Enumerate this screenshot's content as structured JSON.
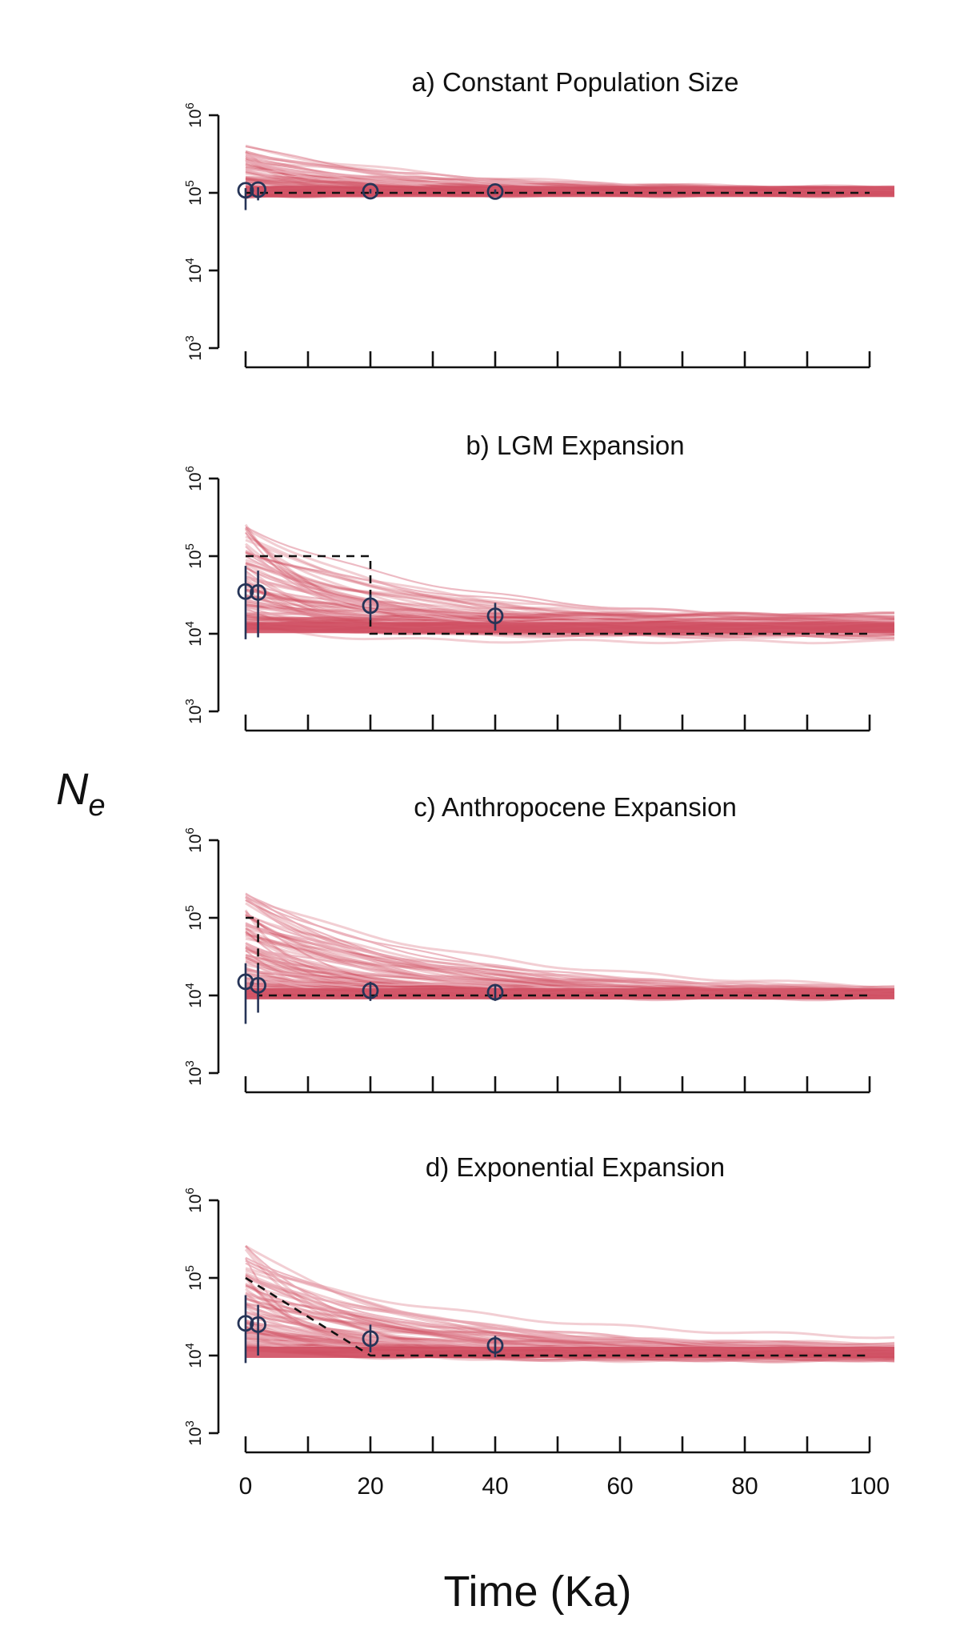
{
  "figure": {
    "xlabel": "Time (Ka)",
    "ylabel_main": "N",
    "ylabel_sub": "e"
  },
  "colors": {
    "traj": "#cf4f62",
    "traj_light": "#e8a9b4",
    "estimate": "#263457",
    "truth": "#111111",
    "axis": "#111111"
  },
  "chart_data": [
    {
      "type": "line",
      "title": "a) Constant Population Size",
      "xlim": [
        0,
        100
      ],
      "ylim": [
        1000,
        1000000
      ],
      "y_scale": "log",
      "x_ticks": [
        0,
        10,
        20,
        30,
        40,
        50,
        60,
        70,
        80,
        90,
        100
      ],
      "x_tick_labels": [],
      "y_ticks": [
        1000,
        10000,
        100000,
        1000000
      ],
      "y_tick_base": "10",
      "y_tick_exps": [
        "3",
        "4",
        "5",
        "6"
      ],
      "truth": {
        "x": [
          0,
          100
        ],
        "y": [
          100000,
          100000
        ]
      },
      "estimates": [
        {
          "x": 0,
          "y": 108000,
          "lo": 60000,
          "hi": 115000
        },
        {
          "x": 2,
          "y": 110000,
          "lo": 80000,
          "hi": 118000
        },
        {
          "x": 20,
          "y": 105000,
          "lo": 98000,
          "hi": 112000
        },
        {
          "x": 40,
          "y": 104000,
          "lo": 97000,
          "hi": 111000
        }
      ],
      "trajectories": {
        "base": 104000,
        "band_lo": 90000,
        "band_hi": 120000,
        "start_lo": 90000,
        "start_hi": 400000,
        "x_end": 104
      }
    },
    {
      "type": "line",
      "title": "b) LGM Expansion",
      "xlim": [
        0,
        100
      ],
      "ylim": [
        1000,
        1000000
      ],
      "y_scale": "log",
      "x_ticks": [
        0,
        10,
        20,
        30,
        40,
        50,
        60,
        70,
        80,
        90,
        100
      ],
      "x_tick_labels": [],
      "y_ticks": [
        1000,
        10000,
        100000,
        1000000
      ],
      "y_tick_base": "10",
      "y_tick_exps": [
        "3",
        "4",
        "5",
        "6"
      ],
      "truth": {
        "x": [
          0,
          20,
          20,
          100
        ],
        "y": [
          100000,
          100000,
          10000,
          10000
        ]
      },
      "estimates": [
        {
          "x": 0,
          "y": 35000,
          "lo": 8500,
          "hi": 75000
        },
        {
          "x": 2,
          "y": 34000,
          "lo": 9000,
          "hi": 65000
        },
        {
          "x": 20,
          "y": 23000,
          "lo": 15000,
          "hi": 32000
        },
        {
          "x": 40,
          "y": 17000,
          "lo": 11000,
          "hi": 25000
        }
      ],
      "trajectories": {
        "base": 12000,
        "band_lo": 8000,
        "band_hi": 22000,
        "start_lo": 12000,
        "start_hi": 260000,
        "x_end": 104
      }
    },
    {
      "type": "line",
      "title": "c) Anthropocene Expansion",
      "xlim": [
        0,
        100
      ],
      "ylim": [
        1000,
        1000000
      ],
      "y_scale": "log",
      "x_ticks": [
        0,
        10,
        20,
        30,
        40,
        50,
        60,
        70,
        80,
        90,
        100
      ],
      "x_tick_labels": [],
      "y_ticks": [
        1000,
        10000,
        100000,
        1000000
      ],
      "y_tick_base": "10",
      "y_tick_exps": [
        "3",
        "4",
        "5",
        "6"
      ],
      "truth": {
        "x": [
          0,
          2,
          2,
          100
        ],
        "y": [
          100000,
          100000,
          10000,
          10000
        ]
      },
      "estimates": [
        {
          "x": 0,
          "y": 15000,
          "lo": 4300,
          "hi": 26000
        },
        {
          "x": 2,
          "y": 13500,
          "lo": 6000,
          "hi": 25000
        },
        {
          "x": 20,
          "y": 11500,
          "lo": 8500,
          "hi": 15000
        },
        {
          "x": 40,
          "y": 11000,
          "lo": 8500,
          "hi": 14000
        }
      ],
      "trajectories": {
        "base": 10500,
        "band_lo": 8800,
        "band_hi": 13000,
        "start_lo": 10000,
        "start_hi": 200000,
        "x_end": 104
      }
    },
    {
      "type": "line",
      "title": "d) Exponential Expansion",
      "xlim": [
        0,
        100
      ],
      "ylim": [
        1000,
        1000000
      ],
      "y_scale": "log",
      "x_ticks": [
        0,
        10,
        20,
        30,
        40,
        50,
        60,
        70,
        80,
        90,
        100
      ],
      "x_tick_labels": [
        "0",
        "",
        "20",
        "",
        "40",
        "",
        "60",
        "",
        "80",
        "",
        "100"
      ],
      "y_ticks": [
        1000,
        10000,
        100000,
        1000000
      ],
      "y_tick_base": "10",
      "y_tick_exps": [
        "3",
        "4",
        "5",
        "6"
      ],
      "truth": {
        "x": [
          0,
          20,
          100
        ],
        "y": [
          100000,
          10000,
          10000
        ]
      },
      "estimates": [
        {
          "x": 0,
          "y": 26000,
          "lo": 8000,
          "hi": 60000
        },
        {
          "x": 2,
          "y": 25000,
          "lo": 10000,
          "hi": 45000
        },
        {
          "x": 20,
          "y": 16500,
          "lo": 11000,
          "hi": 25000
        },
        {
          "x": 40,
          "y": 13500,
          "lo": 9500,
          "hi": 18000
        }
      ],
      "trajectories": {
        "base": 11000,
        "band_lo": 7500,
        "band_hi": 16000,
        "start_lo": 12000,
        "start_hi": 280000,
        "x_end": 104
      }
    }
  ]
}
